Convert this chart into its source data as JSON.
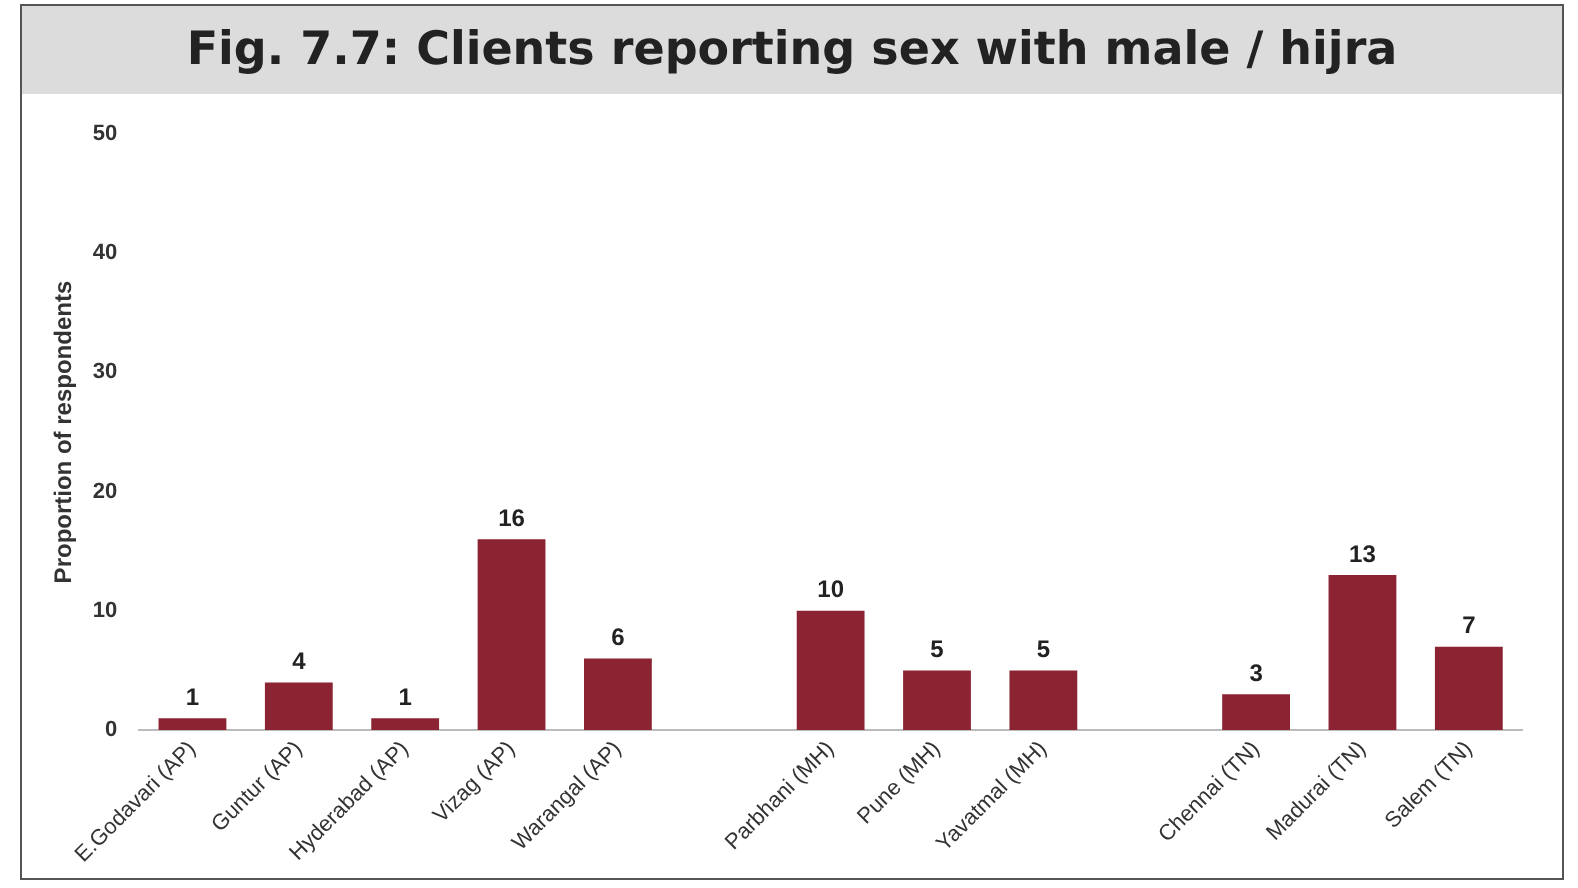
{
  "chart_data": {
    "type": "bar",
    "title": "Fig. 7.7: Clients reporting sex with male / hijra",
    "ylabel": "Proportion of respondents",
    "categories": [
      "E.Godavari (AP)",
      "Guntur (AP)",
      "Hyderabad (AP)",
      "Vizag (AP)",
      "Warangal (AP)",
      null,
      "Parbhani (MH)",
      "Pune (MH)",
      "Yavatmal (MH)",
      null,
      "Chennai (TN)",
      "Madurai (TN)",
      "Salem (TN)"
    ],
    "values": [
      1,
      4,
      1,
      16,
      6,
      null,
      10,
      5,
      5,
      null,
      3,
      13,
      7
    ],
    "color": "#8b2332",
    "ylim": [
      0,
      50
    ],
    "yticks": [
      0,
      10,
      20,
      30,
      40,
      50
    ],
    "grid": false,
    "data_labels": true
  }
}
